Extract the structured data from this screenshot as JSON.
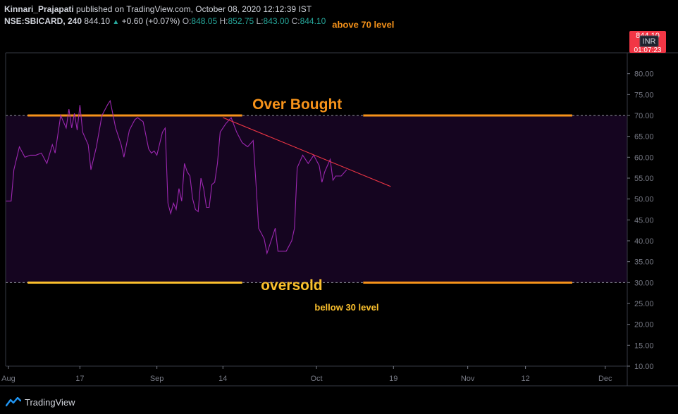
{
  "header": {
    "author": "Kinnari_Prajapati",
    "published_text": "published on TradingView.com, October 08, 2020 12:12:39 IST",
    "symbol": "NSE:SBICARD, 240",
    "last_price": "844.10",
    "change": "+0.60 (+0.07%)",
    "open_label": "O:",
    "open_value": "848.05",
    "high_label": "H:",
    "high_value": "852.75",
    "low_label": "L:",
    "low_value": "843.00",
    "close_label": "C:",
    "close_value": "844.10"
  },
  "price_badge": {
    "price": "844.10",
    "currency": "INR",
    "countdown": "01:07:23",
    "color": "#f23645"
  },
  "footer": {
    "brand": "TradingView"
  },
  "chart_data": {
    "type": "line",
    "series": [
      {
        "color": "#9c27b0",
        "points": [
          [
            0,
            49.5
          ],
          [
            2,
            49.5
          ],
          [
            3,
            57
          ],
          [
            5,
            62.5
          ],
          [
            7,
            60
          ],
          [
            9,
            60.5
          ],
          [
            11,
            60.5
          ],
          [
            13,
            61
          ],
          [
            15,
            58.5
          ],
          [
            17,
            63
          ],
          [
            18,
            61
          ],
          [
            20,
            70
          ],
          [
            22,
            67
          ],
          [
            23,
            71.5
          ],
          [
            24,
            67
          ],
          [
            25,
            70.5
          ],
          [
            26,
            66.5
          ],
          [
            27,
            72.5
          ],
          [
            28,
            66
          ],
          [
            30,
            63
          ],
          [
            31,
            57
          ],
          [
            33,
            62.5
          ],
          [
            35,
            70
          ],
          [
            37,
            72.5
          ],
          [
            38,
            73.5
          ],
          [
            40,
            67
          ],
          [
            42,
            63
          ],
          [
            43,
            60
          ],
          [
            45,
            66.5
          ],
          [
            47,
            69
          ],
          [
            48,
            69.5
          ],
          [
            50,
            68.5
          ],
          [
            52,
            62
          ],
          [
            53,
            61
          ],
          [
            54,
            61.5
          ],
          [
            55,
            60.5
          ],
          [
            57,
            66
          ],
          [
            58,
            67
          ],
          [
            59,
            49
          ],
          [
            60,
            46.5
          ],
          [
            61,
            49
          ],
          [
            62,
            47.5
          ],
          [
            63,
            52.5
          ],
          [
            64,
            49.5
          ],
          [
            65,
            58.5
          ],
          [
            66,
            56.5
          ],
          [
            67,
            55.5
          ],
          [
            68,
            50
          ],
          [
            69,
            47.5
          ],
          [
            70,
            47
          ],
          [
            71,
            55
          ],
          [
            72,
            52.5
          ],
          [
            73,
            48
          ],
          [
            74,
            48
          ],
          [
            75,
            53.5
          ],
          [
            76,
            54
          ],
          [
            77,
            58.5
          ],
          [
            78,
            66
          ],
          [
            80,
            68
          ],
          [
            82,
            69.5
          ],
          [
            84,
            66
          ],
          [
            86,
            63.5
          ],
          [
            88,
            62.5
          ],
          [
            90,
            64
          ],
          [
            91,
            54
          ],
          [
            92,
            43
          ],
          [
            94,
            40.5
          ],
          [
            95,
            37
          ],
          [
            97,
            41
          ],
          [
            98,
            43
          ],
          [
            99,
            37.5
          ],
          [
            101,
            37.5
          ],
          [
            102,
            37.5
          ],
          [
            104,
            40
          ],
          [
            105,
            43
          ],
          [
            106,
            57.5
          ],
          [
            108,
            60.5
          ],
          [
            110,
            58.5
          ],
          [
            112,
            60.5
          ],
          [
            114,
            58
          ],
          [
            115,
            54
          ],
          [
            116,
            56.5
          ],
          [
            118,
            59.5
          ],
          [
            119,
            54.5
          ],
          [
            120,
            55.5
          ],
          [
            122,
            55.5
          ],
          [
            124,
            57
          ]
        ]
      }
    ],
    "trend_line": {
      "color": "#f23645",
      "from": [
        79,
        69.5
      ],
      "to": [
        140,
        53
      ]
    },
    "x_ticks": [
      {
        "label": "Aug",
        "x": 1
      },
      {
        "label": "17",
        "x": 27
      },
      {
        "label": "Sep",
        "x": 55
      },
      {
        "label": "14",
        "x": 79
      },
      {
        "label": "Oct",
        "x": 113
      },
      {
        "label": "19",
        "x": 141
      },
      {
        "label": "Nov",
        "x": 168
      },
      {
        "label": "12",
        "x": 189
      },
      {
        "label": "Dec",
        "x": 218
      }
    ],
    "x_range": [
      0,
      226
    ],
    "ylim": [
      10,
      85
    ],
    "y_ticks": [
      "80.00",
      "75.00",
      "70.00",
      "65.00",
      "60.00",
      "55.00",
      "50.00",
      "45.00",
      "40.00",
      "35.00",
      "30.00",
      "25.00",
      "20.00",
      "15.00",
      "10.00"
    ],
    "bands": {
      "upper": 70,
      "lower": 30,
      "fill": "#150520"
    },
    "levels": [
      {
        "value": 70,
        "color": "#f7931a",
        "segments": [
          [
            8,
            86
          ],
          [
            130,
            206
          ]
        ]
      },
      {
        "value": 30,
        "color": "#fbc02d",
        "segments": [
          [
            8,
            86
          ]
        ]
      },
      {
        "value": 30,
        "color": "#f7931a",
        "segments": [
          [
            130,
            206
          ]
        ]
      }
    ],
    "annotations": [
      {
        "text": "above 70 level",
        "x": 130,
        "y": 91,
        "color": "#f7931a",
        "size": "small"
      },
      {
        "text": "Over Bought",
        "x": 106,
        "y": 71.5,
        "color": "#f7931a",
        "size": "large"
      },
      {
        "text": "oversold",
        "x": 104,
        "y": 28.2,
        "color": "#fbc02d",
        "size": "large"
      },
      {
        "text": "bellow 30 level",
        "x": 124,
        "y": 23.3,
        "color": "#fbc02d",
        "size": "small"
      }
    ],
    "grid": false
  }
}
